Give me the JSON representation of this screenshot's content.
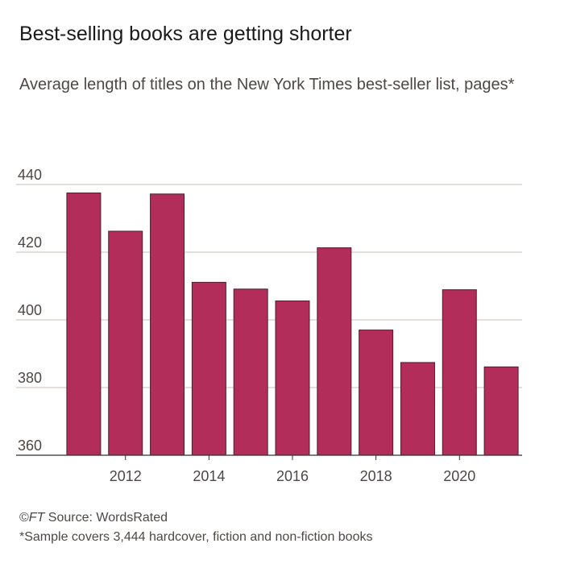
{
  "title": "Best-selling books are getting shorter",
  "subtitle": "Average length of titles on the New York Times best-seller list, pages*",
  "footer": {
    "copyright_symbol": "©",
    "ft_mark": "FT",
    "source": " Source: WordsRated",
    "note": "*Sample covers 3,444 hardcover, fiction and non-fiction books"
  },
  "chart_data": {
    "type": "bar",
    "x": [
      2011,
      2012,
      2013,
      2014,
      2015,
      2016,
      2017,
      2018,
      2019,
      2020,
      2021
    ],
    "values": [
      437.5,
      426.2,
      437.2,
      411.1,
      409.1,
      405.6,
      421.3,
      397.0,
      387.4,
      408.9,
      386.1
    ],
    "xticks": [
      2012,
      2014,
      2016,
      2018,
      2020
    ],
    "yticks": [
      360,
      380,
      400,
      420,
      440
    ],
    "ylim": [
      360,
      440
    ],
    "bar_color": "#b32d5a",
    "bar_edge_color": "#4a1f2c",
    "grid_color": "#c9bfb4",
    "axis_color": "#33302e",
    "grid": true
  }
}
